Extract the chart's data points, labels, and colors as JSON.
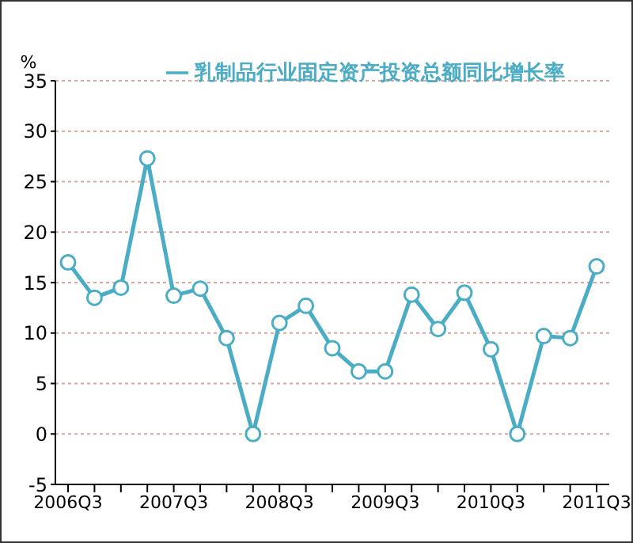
{
  "chart_data": {
    "type": "line",
    "ylabel": "%",
    "categories": [
      "2006Q3",
      null,
      null,
      null,
      "2007Q3",
      null,
      null,
      null,
      "2008Q3",
      null,
      null,
      null,
      "2009Q3",
      null,
      null,
      null,
      "2010Q3",
      null,
      null,
      null,
      "2011Q3"
    ],
    "series": [
      {
        "name": "乳制品行业固定资产投资总额同比增长率",
        "color": "#4bacc6",
        "values": [
          17,
          13.5,
          14.5,
          27.3,
          13.7,
          14.4,
          9.5,
          0,
          11,
          12.7,
          8.5,
          6.2,
          6.2,
          13.8,
          10.4,
          14,
          8.4,
          0,
          9.7,
          9.5,
          16.6
        ]
      }
    ],
    "ylim": [
      -5,
      35
    ],
    "yticks": [
      -5,
      0,
      5,
      10,
      15,
      20,
      25,
      30,
      35
    ],
    "grid": "y",
    "legend": "top",
    "marker": "circle",
    "line_style": "solid"
  }
}
